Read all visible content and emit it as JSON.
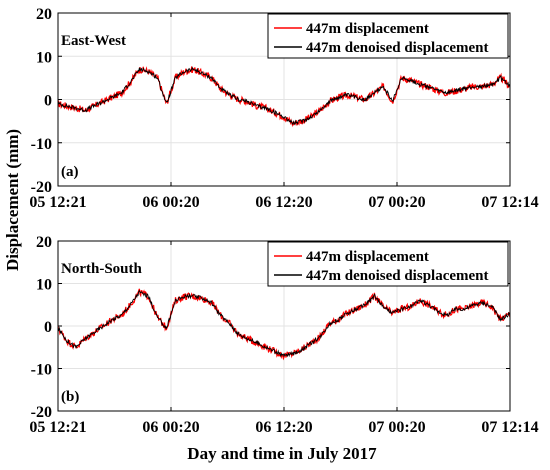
{
  "figure": {
    "ylabel": "Displacement (mm)",
    "xlabel": "Day and time in July 2017"
  },
  "chart_data": [
    {
      "type": "line",
      "panel_label": "(a)",
      "annotation": "East-West",
      "ylabel": "Displacement (mm)",
      "ylim": [
        -20,
        20
      ],
      "yticks": [
        -20,
        -10,
        0,
        10,
        20
      ],
      "xtick_labels": [
        "05 12:21",
        "06 00:20",
        "06 12:20",
        "07 00:20",
        "07 12:14"
      ],
      "grid": true,
      "legend_position": "top-right",
      "series": [
        {
          "name": "447m displacement",
          "color": "#ff0000",
          "x": [
            0,
            2,
            4,
            6,
            8,
            10,
            12,
            14,
            16,
            18,
            20,
            22,
            24,
            26,
            28,
            30,
            32,
            34,
            36,
            38,
            40,
            42,
            44,
            46,
            48,
            50,
            52,
            54,
            56,
            58,
            60,
            62,
            64,
            66,
            68,
            70,
            72,
            74,
            76,
            78,
            80,
            82,
            84,
            86,
            88,
            90,
            92,
            94,
            96,
            98,
            100
          ],
          "values": [
            -1,
            -1.5,
            -2,
            -2.5,
            -1.5,
            -0.5,
            0.5,
            1.5,
            4,
            7,
            6.5,
            5,
            -1,
            5,
            6.5,
            7,
            6,
            5,
            2.5,
            1,
            0,
            -0.5,
            -1.5,
            -2,
            -3,
            -4,
            -5.5,
            -5,
            -4,
            -2.5,
            -0.5,
            0.5,
            1,
            0.5,
            0,
            1.5,
            3,
            -0.5,
            5,
            4.5,
            3.5,
            3,
            2,
            1.5,
            2,
            2.5,
            3,
            3,
            3.5,
            5,
            3
          ]
        },
        {
          "name": "447m denoised displacement",
          "color": "#000000",
          "x": [
            0,
            2,
            4,
            6,
            8,
            10,
            12,
            14,
            16,
            18,
            20,
            22,
            24,
            26,
            28,
            30,
            32,
            34,
            36,
            38,
            40,
            42,
            44,
            46,
            48,
            50,
            52,
            54,
            56,
            58,
            60,
            62,
            64,
            66,
            68,
            70,
            72,
            74,
            76,
            78,
            80,
            82,
            84,
            86,
            88,
            90,
            92,
            94,
            96,
            98,
            100
          ],
          "values": [
            -1,
            -1.5,
            -2,
            -2.5,
            -1.5,
            -0.5,
            0.5,
            1.5,
            4,
            7,
            6.5,
            5,
            -1,
            5,
            6.5,
            7,
            6,
            5,
            2.5,
            1,
            0,
            -0.5,
            -1.5,
            -2,
            -3,
            -4,
            -5.5,
            -5,
            -4,
            -2.5,
            -0.5,
            0.5,
            1,
            0.5,
            0,
            1.5,
            3,
            -0.5,
            5,
            4.5,
            3.5,
            3,
            2,
            1.5,
            2,
            2.5,
            3,
            3,
            3.5,
            5,
            3
          ]
        }
      ]
    },
    {
      "type": "line",
      "panel_label": "(b)",
      "annotation": "North-South",
      "ylabel": "Displacement (mm)",
      "xlabel": "Day and time in July 2017",
      "ylim": [
        -20,
        20
      ],
      "yticks": [
        -20,
        -10,
        0,
        10,
        20
      ],
      "xtick_labels": [
        "05 12:21",
        "06 00:20",
        "06 12:20",
        "07 00:20",
        "07 12:14"
      ],
      "grid": true,
      "legend_position": "top-right",
      "series": [
        {
          "name": "447m displacement",
          "color": "#ff0000",
          "x": [
            0,
            2,
            4,
            6,
            8,
            10,
            12,
            14,
            16,
            18,
            20,
            22,
            24,
            26,
            28,
            30,
            32,
            34,
            36,
            38,
            40,
            42,
            44,
            46,
            48,
            50,
            52,
            54,
            56,
            58,
            60,
            62,
            64,
            66,
            68,
            70,
            72,
            74,
            76,
            78,
            80,
            82,
            84,
            86,
            88,
            90,
            92,
            94,
            96,
            98,
            100
          ],
          "values": [
            -0.5,
            -3.5,
            -5,
            -3,
            -1.5,
            0,
            1.5,
            2.5,
            5,
            8,
            7,
            2,
            -0.5,
            6,
            7,
            7,
            6.5,
            5.5,
            2.5,
            0.5,
            -2,
            -3,
            -4,
            -5,
            -6,
            -7,
            -6.5,
            -5.5,
            -4,
            -2.5,
            0.5,
            1.5,
            3,
            4,
            5,
            7,
            4.5,
            3,
            4,
            4.5,
            6,
            5,
            3.5,
            2.5,
            4,
            4,
            5,
            5.5,
            4.5,
            1.5,
            3
          ]
        },
        {
          "name": "447m denoised displacement",
          "color": "#000000",
          "x": [
            0,
            2,
            4,
            6,
            8,
            10,
            12,
            14,
            16,
            18,
            20,
            22,
            24,
            26,
            28,
            30,
            32,
            34,
            36,
            38,
            40,
            42,
            44,
            46,
            48,
            50,
            52,
            54,
            56,
            58,
            60,
            62,
            64,
            66,
            68,
            70,
            72,
            74,
            76,
            78,
            80,
            82,
            84,
            86,
            88,
            90,
            92,
            94,
            96,
            98,
            100
          ],
          "values": [
            -0.5,
            -3.5,
            -5,
            -3,
            -1.5,
            0,
            1.5,
            2.5,
            5,
            8,
            7,
            2,
            -0.5,
            6,
            7,
            7,
            6.5,
            5.5,
            2.5,
            0.5,
            -2,
            -3,
            -4,
            -5,
            -6,
            -7,
            -6.5,
            -5.5,
            -4,
            -2.5,
            0.5,
            1.5,
            3,
            4,
            5,
            7,
            4.5,
            3,
            4,
            4.5,
            6,
            5,
            3.5,
            2.5,
            4,
            4,
            5,
            5.5,
            4.5,
            1.5,
            3
          ]
        }
      ]
    }
  ]
}
